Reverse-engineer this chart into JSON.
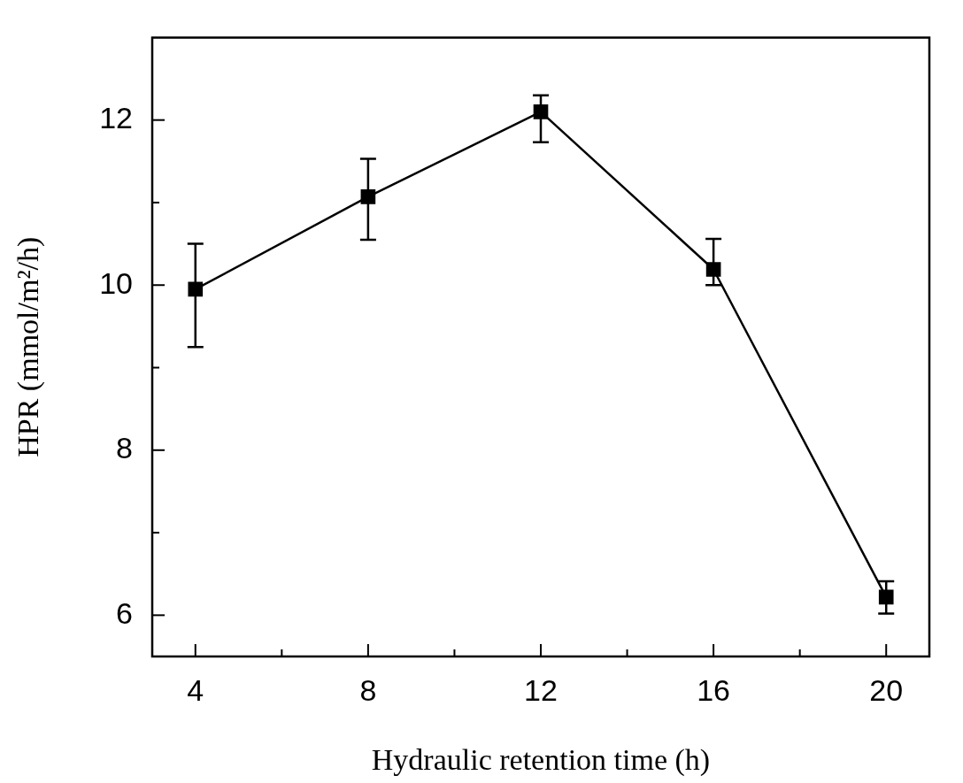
{
  "chart_data": {
    "type": "line",
    "xlabel": "Hydraulic retention time (h)",
    "ylabel": "HPR (mmol/m²/h)",
    "x": [
      4,
      8,
      12,
      16,
      20
    ],
    "series": [
      {
        "color": "#000000",
        "values": [
          9.95,
          11.07,
          12.1,
          10.19,
          6.22
        ],
        "errors": [
          [
            9.25,
            10.5
          ],
          [
            10.55,
            11.53
          ],
          [
            11.73,
            12.3
          ],
          [
            10.0,
            10.56
          ],
          [
            6.02,
            6.41
          ]
        ]
      }
    ],
    "xlim": [
      3,
      21
    ],
    "xticks": [
      4,
      {
        "value": 6,
        "label": null
      },
      8,
      {
        "value": 10,
        "label": null
      },
      12,
      {
        "value": 14,
        "label": null
      },
      16,
      {
        "value": 18,
        "label": null
      },
      20
    ],
    "ylim": [
      5.5,
      13
    ],
    "yticks": [
      6,
      {
        "value": 7,
        "label": null
      },
      8,
      {
        "value": 9,
        "label": null
      },
      10,
      {
        "value": 11,
        "label": null
      },
      12
    ],
    "grid": false,
    "legend": false,
    "marker": "square",
    "line_style": "solid"
  }
}
